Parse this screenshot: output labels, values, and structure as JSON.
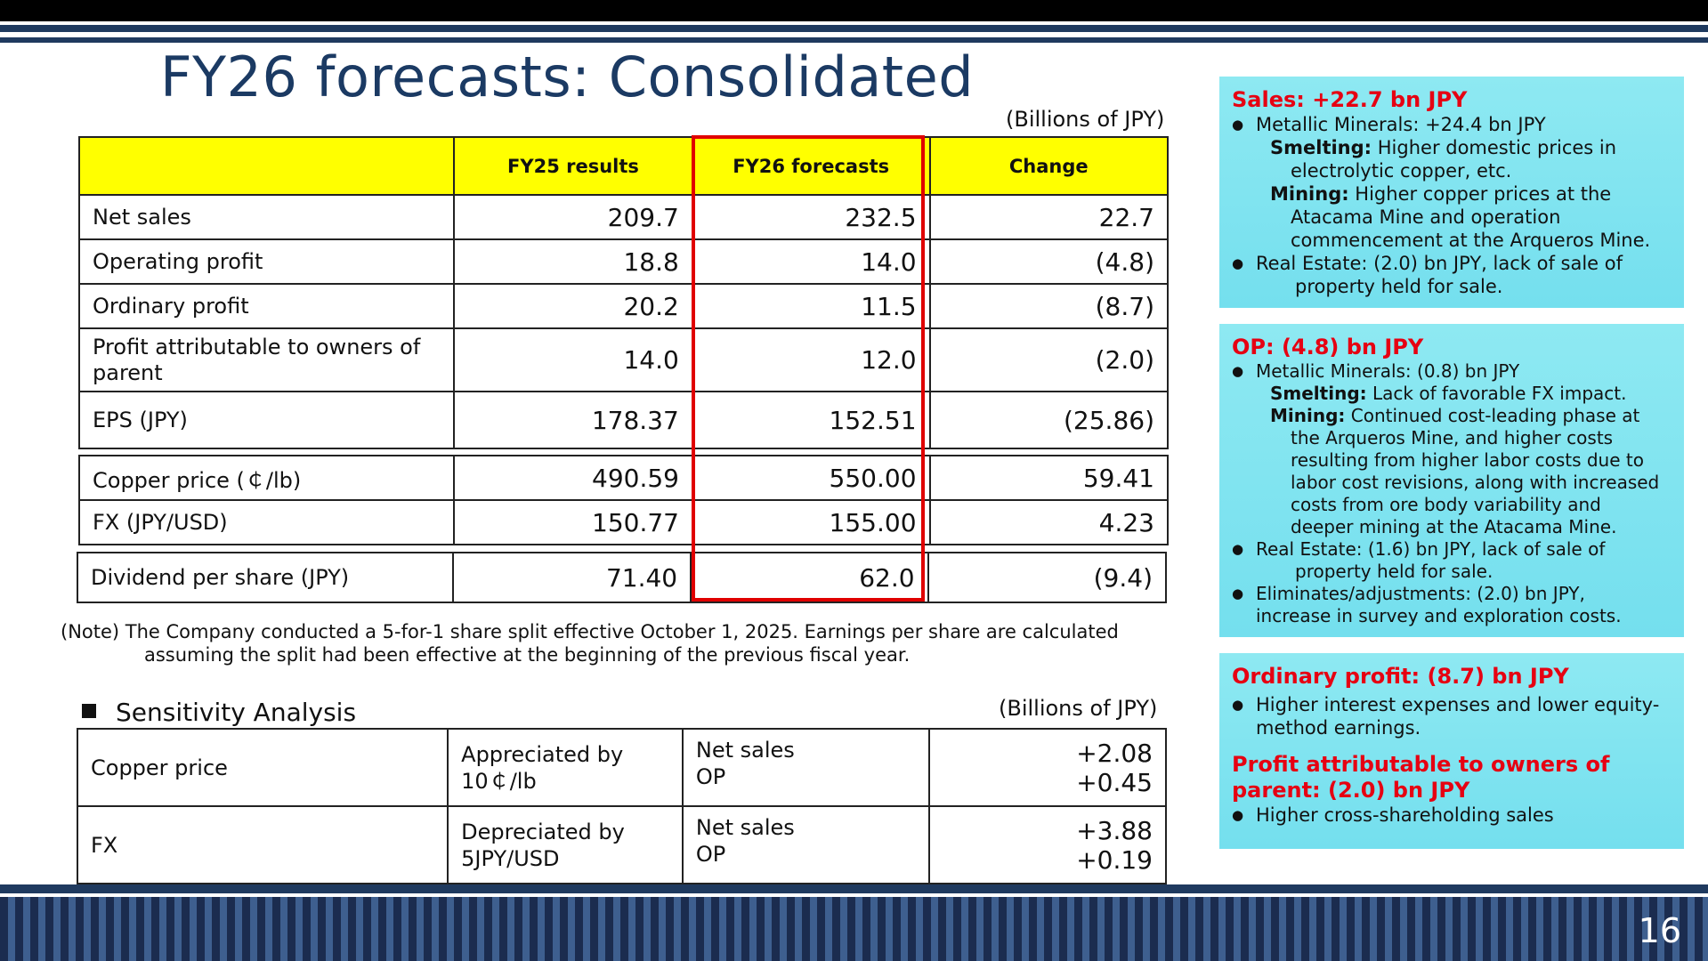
{
  "title": "FY26 forecasts: Consolidated",
  "unit_main": "(Billions of JPY)",
  "unit_sens": "(Billions of JPY)",
  "main_table": {
    "headers": [
      "",
      "FY25 results",
      "FY26 forecasts",
      "Change"
    ],
    "rows": [
      {
        "label": "Net sales",
        "fy25": "209.7",
        "fy26": "232.5",
        "change": "22.7"
      },
      {
        "label": "Operating profit",
        "fy25": "18.8",
        "fy26": "14.0",
        "change": "(4.8)"
      },
      {
        "label": "Ordinary profit",
        "fy25": "20.2",
        "fy26": "11.5",
        "change": "(8.7)"
      },
      {
        "label": "Profit attributable to owners of parent",
        "fy25": "14.0",
        "fy26": "12.0",
        "change": "(2.0)"
      },
      {
        "label": "EPS (JPY)",
        "fy25": "178.37",
        "fy26": "152.51",
        "change": "(25.86)"
      }
    ]
  },
  "market_table": {
    "rows": [
      {
        "label": "Copper price (￠/lb)",
        "fy25": "490.59",
        "fy26": "550.00",
        "change": "59.41"
      },
      {
        "label": "FX (JPY/USD)",
        "fy25": "150.77",
        "fy26": "155.00",
        "change": "4.23"
      }
    ]
  },
  "dividend": {
    "label": "Dividend per share (JPY)",
    "fy25": "71.40",
    "fy26": "62.0",
    "change": "(9.4)"
  },
  "note": {
    "line1": "(Note) The Company conducted a 5-for-1 share split effective October 1, 2025. Earnings per share are calculated",
    "line2": "assuming the split had been effective at the beginning of the previous fiscal year."
  },
  "sensitivity": {
    "heading": "Sensitivity Analysis",
    "rows": [
      {
        "item": "Copper price",
        "cond1": "Appreciated by",
        "cond2": "10￠/lb",
        "ind1": "Net sales",
        "ind2": "OP",
        "val1": "+2.08",
        "val2": "+0.45"
      },
      {
        "item": "FX",
        "cond1": "Depreciated by",
        "cond2": "5JPY/USD",
        "ind1": "Net sales",
        "ind2": "OP",
        "val1": "+3.88",
        "val2": "+0.19"
      }
    ]
  },
  "panel_sales": {
    "heading": "Sales: +22.7 bn JPY",
    "b1": "Metallic Minerals: +24.4 bn JPY",
    "smelting_label": "Smelting:",
    "smelting_text": " Higher domestic prices in",
    "smelting_cont": "electrolytic copper, etc.",
    "mining_label": "Mining:",
    "mining_text": " Higher copper prices at the",
    "mining_cont1": "Atacama Mine and operation",
    "mining_cont2": "commencement at the Arqueros Mine.",
    "b2": "Real Estate: (2.0) bn JPY, lack of sale of",
    "b2_cont": "property held for sale."
  },
  "panel_op": {
    "heading": "OP: (4.8) bn JPY",
    "b1": "Metallic Minerals: (0.8) bn JPY",
    "smelting_label": "Smelting:",
    "smelting_text": " Lack of favorable FX impact.",
    "mining_label": "Mining:",
    "mining_text": " Continued cost-leading phase at",
    "mining_cont1": "the Arqueros Mine, and higher costs",
    "mining_cont2": "resulting from higher labor costs due to",
    "mining_cont3": "labor cost revisions, along with increased",
    "mining_cont4": "costs from ore body variability and",
    "mining_cont5": "deeper mining at the Atacama Mine.",
    "b2": "Real Estate: (1.6) bn JPY, lack of sale of",
    "b2_cont": "property held for sale.",
    "b3": "Eliminates/adjustments: (2.0) bn JPY,",
    "b3_cont": "increase in survey and exploration costs."
  },
  "panel_ord": {
    "heading": "Ordinary profit: (8.7) bn JPY",
    "b1": "Higher interest expenses and lower equity-",
    "b1_cont": "method earnings.",
    "heading2_l1": "Profit attributable to owners of",
    "heading2_l2": "parent: (2.0) bn JPY",
    "b2": "Higher cross-shareholding sales"
  },
  "page_number": "16"
}
